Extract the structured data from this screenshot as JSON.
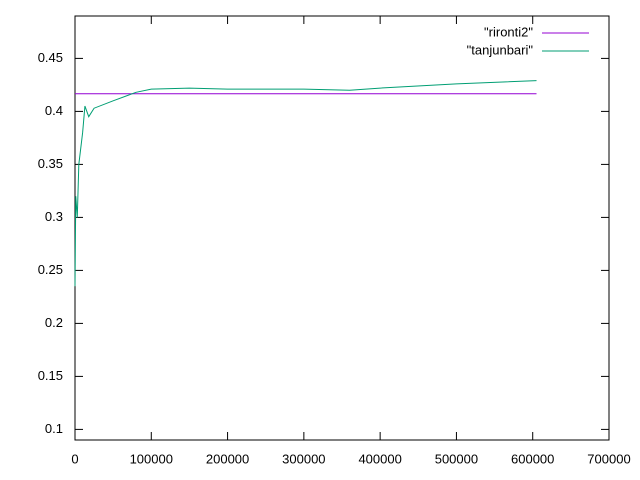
{
  "chart_data": {
    "type": "line",
    "x": [
      0,
      1000,
      3000,
      5000,
      10000,
      13000,
      18000,
      25000,
      50000,
      80000,
      100000,
      150000,
      200000,
      300000,
      360000,
      400000,
      500000,
      605000
    ],
    "series": [
      {
        "name": "\"rironti2\"",
        "color": "#9400d3",
        "values": [
          0.4167,
          0.4167,
          0.4167,
          0.4167,
          0.4167,
          0.4167,
          0.4167,
          0.4167,
          0.4167,
          0.4167,
          0.4167,
          0.4167,
          0.4167,
          0.4167,
          0.4167,
          0.4167,
          0.4167,
          0.4167
        ]
      },
      {
        "name": "\"tanjunbari\"",
        "color": "#009e73",
        "values": [
          0.235,
          0.32,
          0.3,
          0.35,
          0.38,
          0.405,
          0.395,
          0.403,
          0.41,
          0.418,
          0.421,
          0.422,
          0.421,
          0.421,
          0.42,
          0.422,
          0.426,
          0.429
        ]
      }
    ],
    "xlim": [
      0,
      700000
    ],
    "xticks": [
      0,
      100000,
      200000,
      300000,
      400000,
      500000,
      600000,
      700000
    ],
    "ylim": [
      0.09,
      0.49
    ],
    "yticks": [
      0.1,
      0.15,
      0.2,
      0.25,
      0.3,
      0.35,
      0.4,
      0.45
    ],
    "legend": "top-right"
  }
}
